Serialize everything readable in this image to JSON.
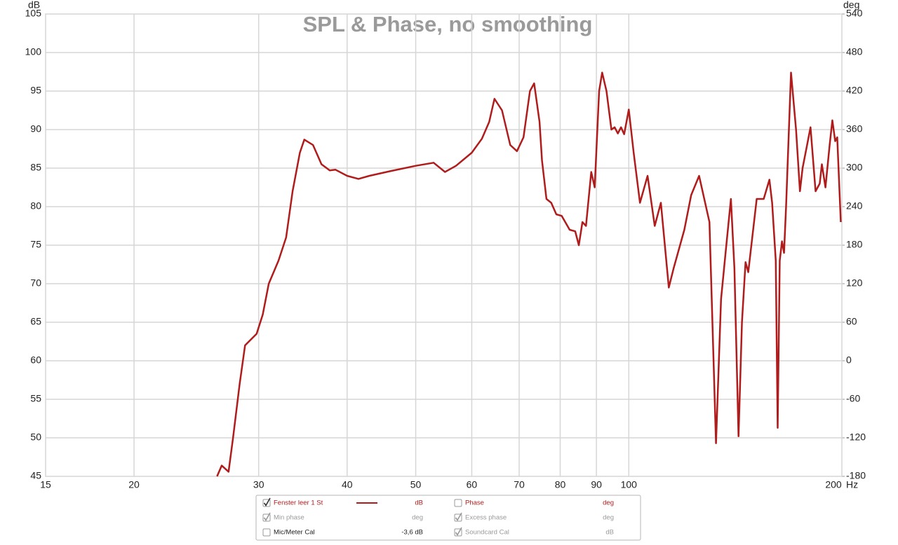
{
  "chart_data": {
    "type": "line",
    "title": "SPL & Phase, no smoothing",
    "y_label": "dB",
    "y2_label": "deg",
    "x_label": "Hz",
    "x_log": true,
    "grid": true,
    "xlim": [
      15,
      200
    ],
    "xticks": [
      15,
      20,
      30,
      40,
      50,
      60,
      70,
      80,
      90,
      100,
      200
    ],
    "ylim": [
      45,
      105
    ],
    "yticks": [
      45,
      50,
      55,
      60,
      65,
      70,
      75,
      80,
      85,
      90,
      95,
      100,
      105
    ],
    "y2lim": [
      -180,
      540
    ],
    "y2ticks": [
      -180,
      -120,
      -60,
      0,
      60,
      120,
      180,
      240,
      300,
      360,
      420,
      480,
      540
    ],
    "x": [
      26.2,
      26.6,
      27.2,
      27.6,
      28.2,
      28.7,
      29.8,
      30.4,
      31,
      32,
      32.8,
      33.5,
      34.3,
      34.8,
      35.8,
      36.8,
      37.8,
      38.5,
      40,
      41.5,
      43,
      46,
      50,
      53,
      55,
      57,
      60,
      62,
      63.5,
      64.6,
      66.2,
      68,
      69.5,
      71,
      72.5,
      73.5,
      74.8,
      75.4,
      76.5,
      77.7,
      79,
      80.4,
      82.5,
      84,
      85,
      86,
      87,
      88.5,
      89.5,
      90.8,
      91.7,
      93,
      94.5,
      95.5,
      96.5,
      97.5,
      98.5,
      100,
      101.6,
      103.7,
      106.3,
      108.8,
      111,
      113.9,
      115.7,
      119.8,
      122.5,
      125.7,
      130,
      132.8,
      135,
      137,
      139.4,
      141,
      142.9,
      144.5,
      146.2,
      147.5,
      151.6,
      155.1,
      158,
      159.4,
      161.3,
      162.3,
      163.4,
      164.6,
      165.7,
      166.8,
      169.5,
      172.3,
      174.5,
      176,
      178.6,
      180.6,
      183.6,
      186.1,
      187.4,
      189.6,
      192.2,
      193.9,
      195.7,
      197,
      199.3
    ],
    "series": [
      {
        "name": "Fenster leer 1 St",
        "color": "#b01c1c",
        "unit": "dB",
        "checked": true,
        "values": [
          45,
          46.4,
          45.6,
          50,
          57,
          62,
          63.5,
          66,
          70,
          73,
          76,
          82,
          87,
          88.7,
          88,
          85.5,
          84.7,
          84.8,
          84,
          83.6,
          84,
          84.6,
          85.3,
          85.7,
          84.5,
          85.3,
          87,
          88.8,
          91,
          94,
          92.5,
          88,
          87.2,
          89,
          95,
          96,
          91,
          86,
          81,
          80.5,
          79,
          78.8,
          77,
          76.8,
          75,
          78,
          77.5,
          84.5,
          82.5,
          95,
          97.4,
          95,
          90,
          90.3,
          89.5,
          90.3,
          89.4,
          92.6,
          87,
          80.5,
          84,
          77.5,
          80.5,
          69.5,
          72,
          77,
          81.5,
          84,
          78,
          49.3,
          68,
          74,
          81,
          72,
          50.2,
          65,
          72.8,
          71.5,
          81,
          81,
          83.5,
          80.5,
          73,
          51.3,
          73,
          75.5,
          74,
          80,
          97.4,
          90,
          82,
          85,
          88,
          90.3,
          82,
          83,
          85.5,
          82.5,
          88,
          91.2,
          88.5,
          89,
          78
        ]
      }
    ],
    "legend_items": [
      {
        "label": "Phase",
        "unit": "deg",
        "checked": false,
        "color": "#b01c1c"
      },
      {
        "label": "Min phase",
        "unit": "deg",
        "checked": true,
        "color": "#9a9a9a"
      },
      {
        "label": "Excess phase",
        "unit": "deg",
        "checked": true,
        "color": "#9a9a9a"
      },
      {
        "label": "Mic/Meter Cal",
        "unit": "-3,6 dB",
        "checked": false,
        "color": "#222222"
      },
      {
        "label": "Soundcard Cal",
        "unit": "dB",
        "checked": true,
        "color": "#9a9a9a"
      }
    ]
  }
}
